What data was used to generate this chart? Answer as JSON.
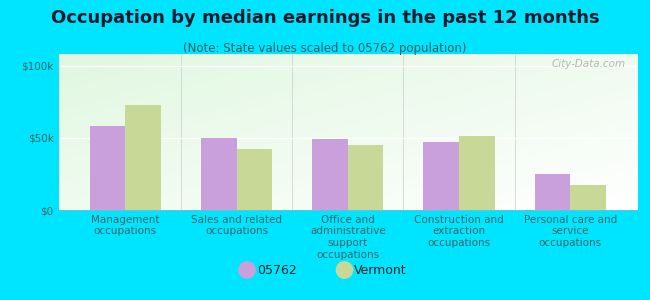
{
  "title": "Occupation by median earnings in the past 12 months",
  "subtitle": "(Note: State values scaled to 05762 population)",
  "categories": [
    "Management\noccupations",
    "Sales and related\noccupations",
    "Office and\nadministrative\nsupport\noccupations",
    "Construction and\nextraction\noccupations",
    "Personal care and\nservice\noccupations"
  ],
  "values_05762": [
    58000,
    50000,
    49500,
    47000,
    25000
  ],
  "values_vermont": [
    73000,
    42000,
    45000,
    51000,
    17000
  ],
  "color_05762": "#c9a0dc",
  "color_vermont": "#c8d896",
  "background_color": "#00e5ff",
  "ylabel_ticks": [
    0,
    50000,
    100000
  ],
  "ylabel_labels": [
    "$0",
    "$50k",
    "$100k"
  ],
  "ylim": [
    0,
    108000
  ],
  "legend_label_05762": "05762",
  "legend_label_vermont": "Vermont",
  "watermark": "City-Data.com",
  "bar_width": 0.32,
  "title_fontsize": 13,
  "subtitle_fontsize": 8.5,
  "tick_fontsize": 7.5,
  "legend_fontsize": 9,
  "title_color": "#1a1a2e",
  "subtitle_color": "#2a6060",
  "tick_color": "#336666"
}
